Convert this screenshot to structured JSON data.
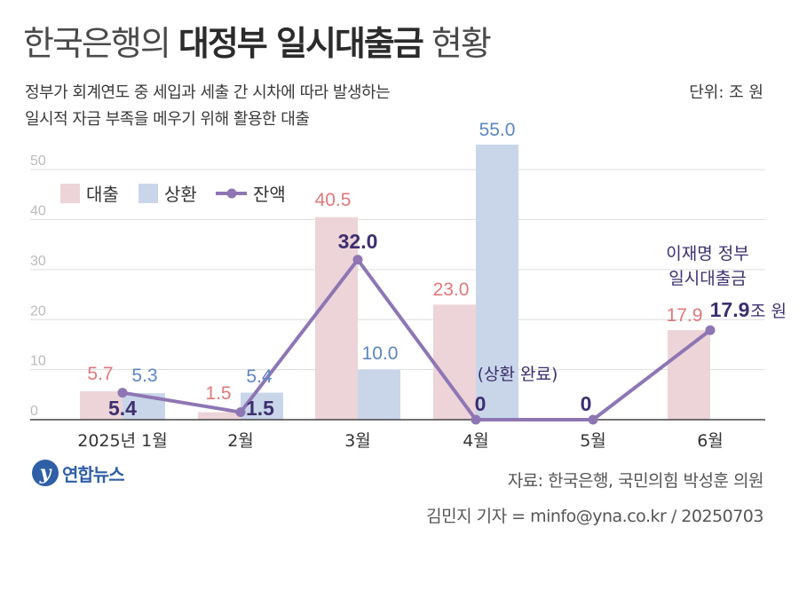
{
  "header": {
    "title_light_1": "한국은행의 ",
    "title_bold": "대정부 일시대출금",
    "title_light_2": " 현황",
    "subtitle_line1": "정부가 회계연도 중 세입과 세출 간 시차에 따라 발생하는",
    "subtitle_line2": "일시적 자금 부족을 메우기 위해 활용한 대출",
    "unit": "단위: 조 원"
  },
  "footer": {
    "logo_text": "연합뉴스",
    "source": "자료: 한국은행, 국민의힘 박성훈 의원",
    "credit": "김민지 기자 = minfo@yna.co.kr / 20250703"
  },
  "colors": {
    "loan": "#ecd4d8",
    "loan_label": "#e07878",
    "repay": "#c9d6ea",
    "repay_label": "#5b86c4",
    "balance": "#8e76b4",
    "balance_label": "#3d2f6e",
    "grid": "#dddddd",
    "axis_text": "#bbbbbb"
  },
  "chart_data": {
    "type": "bar",
    "categories": [
      "2025년 1월",
      "2월",
      "3월",
      "4월",
      "5월",
      "6월"
    ],
    "ylim": [
      0,
      55
    ],
    "yticks": [
      0,
      10,
      20,
      30,
      40,
      50
    ],
    "series": [
      {
        "name": "대출",
        "type": "bar",
        "values": [
          5.7,
          1.5,
          40.5,
          23.0,
          null,
          17.9
        ]
      },
      {
        "name": "상환",
        "type": "bar",
        "values": [
          5.3,
          5.4,
          10.0,
          55.0,
          null,
          null
        ]
      },
      {
        "name": "잔액",
        "type": "line",
        "values": [
          5.4,
          1.5,
          32.0,
          0,
          0,
          17.9
        ]
      }
    ],
    "loan_labels": [
      "5.7",
      "1.5",
      "40.5",
      "23.0",
      "",
      "17.9"
    ],
    "repay_labels": [
      "5.3",
      "5.4",
      "10.0",
      "55.0",
      "",
      ""
    ],
    "balance_labels": [
      "5.4",
      "1.5",
      "32.0",
      "0",
      "0",
      "17.9"
    ],
    "balance_unit_last": "조 원",
    "annotations": {
      "repaid_note": "(상환 완료)",
      "june_note_line1": "이재명 정부",
      "june_note_line2": "일시대출금"
    },
    "legend": [
      "대출",
      "상환",
      "잔액"
    ],
    "legend_position": "top-left",
    "grid": true
  }
}
